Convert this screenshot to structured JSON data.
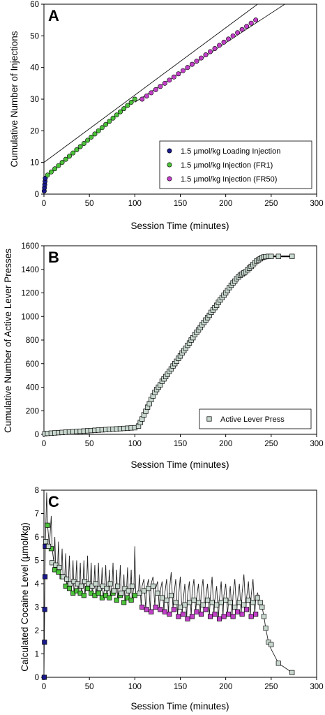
{
  "chart_data": [
    {
      "panel_label": "A",
      "type": "scatter",
      "xlabel": "Session Time (minutes)",
      "ylabel": "Cumulative Number of Injections",
      "xlim": [
        0,
        300
      ],
      "ylim": [
        0,
        60
      ],
      "xticks": [
        0,
        50,
        100,
        150,
        200,
        250,
        300
      ],
      "yticks": [
        0,
        10,
        20,
        30,
        40,
        50,
        60
      ],
      "legend_position": "bottom-right",
      "series": [
        {
          "name": "1.5 µmol/kg Loading Injection",
          "color": "#1a1a8c",
          "marker": "circle",
          "x": [
            0.3,
            0.6,
            0.9,
            1.2,
            1.5
          ],
          "y": [
            1,
            2,
            3,
            4,
            5
          ]
        },
        {
          "name": "1.5 µmol/kg Injection (FR1)",
          "color": "#4cc23a",
          "marker": "circle",
          "x": [
            4,
            8,
            12,
            16,
            20,
            24,
            28,
            32,
            36,
            40,
            44,
            48,
            52,
            56,
            60,
            64,
            68,
            72,
            76,
            80,
            84,
            88,
            92,
            96,
            100
          ],
          "y": [
            6,
            7,
            8,
            9,
            10,
            11,
            12,
            13,
            14,
            15,
            16,
            17,
            18,
            19,
            20,
            21,
            22,
            23,
            24,
            25,
            26,
            27,
            28,
            29,
            30
          ]
        },
        {
          "name": "1.5 µmol/kg Injection (FR50)",
          "color": "#c23fc8",
          "marker": "circle",
          "x": [
            108,
            113,
            118,
            123,
            128,
            133,
            138,
            143,
            148,
            153,
            158,
            163,
            168,
            173,
            178,
            183,
            188,
            193,
            198,
            203,
            208,
            213,
            218,
            223,
            228,
            233
          ],
          "y": [
            30,
            31,
            32,
            33,
            34,
            35,
            36,
            37,
            38,
            39,
            40,
            41,
            42,
            43,
            44,
            45,
            46,
            47,
            48,
            49,
            50,
            51,
            52,
            53,
            54,
            55
          ]
        }
      ],
      "reference_lines": [
        {
          "x": [
            0,
            235
          ],
          "y": [
            10,
            60
          ]
        },
        {
          "x": [
            100,
            265
          ],
          "y": [
            29,
            60
          ]
        }
      ]
    },
    {
      "panel_label": "B",
      "type": "scatter",
      "xlabel": "Session Time (minutes)",
      "ylabel": "Cumulative Number of Active Lever Presses",
      "xlim": [
        0,
        300
      ],
      "ylim": [
        0,
        1600
      ],
      "xticks": [
        0,
        50,
        100,
        150,
        200,
        250,
        300
      ],
      "yticks": [
        0,
        200,
        400,
        600,
        800,
        1000,
        1200,
        1400,
        1600
      ],
      "legend_position": "bottom-right",
      "series": [
        {
          "name": "Active Lever Press",
          "color": "#c8d8cf",
          "marker": "square",
          "x": [
            1,
            4,
            8,
            12,
            16,
            20,
            24,
            28,
            32,
            36,
            40,
            44,
            48,
            52,
            56,
            60,
            64,
            68,
            72,
            76,
            80,
            84,
            88,
            92,
            96,
            100,
            104,
            106,
            108,
            110,
            112,
            114,
            116,
            118,
            120,
            122,
            124,
            126,
            128,
            130,
            132,
            134,
            136,
            138,
            140,
            142,
            144,
            146,
            148,
            150,
            152,
            154,
            156,
            158,
            160,
            162,
            164,
            166,
            168,
            170,
            172,
            174,
            176,
            178,
            180,
            182,
            184,
            186,
            188,
            190,
            192,
            194,
            196,
            198,
            200,
            202,
            204,
            206,
            208,
            210,
            212,
            214,
            216,
            218,
            220,
            222,
            224,
            226,
            228,
            230,
            232,
            234,
            236,
            238,
            240,
            242,
            244,
            247,
            250,
            258,
            273
          ],
          "y": [
            5,
            8,
            10,
            12,
            14,
            16,
            18,
            20,
            22,
            24,
            26,
            28,
            30,
            32,
            34,
            36,
            38,
            40,
            42,
            44,
            46,
            48,
            50,
            52,
            54,
            56,
            70,
            100,
            130,
            165,
            195,
            230,
            260,
            295,
            325,
            355,
            380,
            400,
            420,
            450,
            470,
            490,
            510,
            535,
            555,
            580,
            600,
            620,
            645,
            665,
            690,
            710,
            730,
            755,
            775,
            800,
            820,
            845,
            865,
            885,
            905,
            930,
            950,
            970,
            990,
            1010,
            1035,
            1055,
            1075,
            1095,
            1120,
            1140,
            1160,
            1180,
            1200,
            1220,
            1245,
            1265,
            1285,
            1300,
            1320,
            1335,
            1350,
            1360,
            1370,
            1380,
            1395,
            1410,
            1425,
            1440,
            1455,
            1470,
            1480,
            1490,
            1500,
            1505,
            1508,
            1510,
            1510,
            1510,
            1510
          ]
        }
      ]
    },
    {
      "panel_label": "C",
      "type": "line",
      "xlabel": "Session Time (minutes)",
      "ylabel": "Calculated Cocaine Level (µmol/kg)",
      "xlim": [
        0,
        300
      ],
      "ylim": [
        0,
        8
      ],
      "xticks": [
        0,
        50,
        100,
        150,
        200,
        250,
        300
      ],
      "yticks": [
        0,
        1,
        2,
        3,
        4,
        5,
        6,
        7,
        8
      ],
      "series": [
        {
          "name": "1.5 µmol/kg Loading Injection",
          "color": "#1a1a8c",
          "marker": "square",
          "x": [
            0.3,
            0.6,
            0.9,
            1.2,
            1.5
          ],
          "y": [
            0,
            1.5,
            2.9,
            4.3,
            5.6
          ]
        },
        {
          "name": "1.5 µmol/kg Injection (FR1)",
          "color": "#4cc23a",
          "marker": "square",
          "x": [
            4,
            8,
            12,
            16,
            20,
            24,
            28,
            32,
            36,
            40,
            44,
            48,
            52,
            56,
            60,
            64,
            68,
            72,
            76,
            80,
            84,
            88,
            92,
            96,
            100
          ],
          "y": [
            6.5,
            5.5,
            4.6,
            4.5,
            4.3,
            3.9,
            3.8,
            3.6,
            3.7,
            3.6,
            3.5,
            3.8,
            3.6,
            3.5,
            3.6,
            3.4,
            3.5,
            3.4,
            3.6,
            3.3,
            3.5,
            3.2,
            3.4,
            3.3,
            3.5
          ]
        },
        {
          "name": "1.5 µmol/kg Injection (FR50)",
          "color": "#c23fc8",
          "marker": "square",
          "x": [
            108,
            113,
            118,
            123,
            128,
            133,
            138,
            143,
            148,
            153,
            158,
            163,
            168,
            173,
            178,
            183,
            188,
            193,
            198,
            203,
            208,
            213,
            218,
            223,
            228,
            233
          ],
          "y": [
            3.0,
            2.9,
            2.8,
            3.0,
            2.9,
            2.8,
            2.7,
            2.9,
            2.6,
            2.7,
            2.5,
            2.6,
            2.8,
            2.7,
            2.9,
            2.6,
            2.7,
            2.5,
            2.6,
            2.7,
            2.6,
            2.8,
            2.7,
            2.9,
            2.6,
            2.7
          ]
        },
        {
          "name": "Active Lever Press",
          "color": "#c8d8cf",
          "marker": "square",
          "x": [
            2,
            5,
            9,
            13,
            17,
            21,
            25,
            29,
            33,
            37,
            41,
            45,
            49,
            53,
            57,
            61,
            65,
            69,
            73,
            77,
            81,
            85,
            89,
            93,
            97,
            105,
            110,
            115,
            120,
            125,
            130,
            135,
            140,
            145,
            150,
            155,
            160,
            165,
            170,
            175,
            180,
            185,
            190,
            195,
            200,
            205,
            210,
            215,
            220,
            225,
            230,
            235,
            238,
            240,
            242,
            244,
            247,
            250,
            258,
            273
          ],
          "y": [
            5.8,
            5.6,
            4.9,
            4.8,
            4.7,
            4.3,
            4.2,
            4.0,
            4.1,
            4.0,
            3.9,
            4.1,
            4.0,
            3.9,
            4.0,
            3.8,
            3.9,
            3.8,
            4.0,
            3.7,
            3.9,
            3.6,
            3.8,
            3.7,
            3.9,
            3.6,
            3.7,
            3.8,
            3.9,
            3.6,
            3.4,
            3.3,
            3.5,
            3.2,
            3.0,
            3.1,
            3.2,
            3.3,
            3.2,
            3.1,
            3.3,
            3.2,
            3.1,
            3.2,
            3.3,
            3.2,
            3.0,
            3.2,
            3.1,
            3.3,
            3.2,
            3.4,
            3.2,
            3.0,
            2.6,
            2.1,
            1.5,
            1.4,
            0.6,
            0.2
          ]
        }
      ],
      "trace": {
        "color": "#222222",
        "x": [
          0,
          1.5,
          3,
          4,
          6,
          8,
          9,
          11,
          12,
          13,
          15,
          16,
          17,
          19,
          20,
          21,
          23,
          24,
          25,
          27,
          28,
          29,
          31,
          32,
          33,
          35,
          36,
          37,
          39,
          40,
          41,
          43,
          44,
          45,
          47,
          48,
          49,
          51,
          52,
          53,
          55,
          56,
          57,
          59,
          60,
          61,
          63,
          64,
          65,
          67,
          68,
          69,
          71,
          72,
          73,
          75,
          76,
          77,
          79,
          80,
          81,
          83,
          84,
          85,
          87,
          88,
          89,
          91,
          92,
          93,
          95,
          96,
          97,
          99,
          100,
          101,
          104,
          105,
          107,
          108,
          110,
          112,
          113,
          115,
          117,
          118,
          120,
          122,
          123,
          125,
          127,
          128,
          130,
          132,
          133,
          135,
          137,
          138,
          140,
          142,
          143,
          145,
          147,
          148,
          150,
          152,
          153,
          155,
          157,
          158,
          160,
          162,
          163,
          165,
          167,
          168,
          170,
          172,
          173,
          175,
          177,
          178,
          180,
          182,
          183,
          185,
          187,
          188,
          190,
          192,
          193,
          195,
          197,
          198,
          200,
          202,
          203,
          205,
          207,
          208,
          210,
          212,
          213,
          215,
          217,
          218,
          220,
          222,
          223,
          225,
          227,
          228,
          230,
          232,
          233,
          235,
          238,
          240,
          242,
          244,
          247,
          250,
          258,
          273
        ],
        "y": [
          0,
          5.6,
          7.9,
          6.5,
          5.6,
          6.9,
          5.5,
          4.9,
          6.0,
          4.6,
          4.7,
          5.8,
          4.5,
          4.6,
          5.5,
          4.3,
          4.4,
          5.3,
          3.9,
          4.2,
          5.2,
          3.8,
          4.1,
          5.0,
          3.6,
          4.1,
          5.0,
          3.7,
          4.0,
          4.9,
          3.6,
          4.0,
          5.0,
          3.5,
          4.1,
          5.2,
          3.8,
          4.0,
          4.9,
          3.6,
          4.0,
          4.8,
          3.5,
          4.0,
          4.9,
          3.6,
          3.8,
          4.7,
          3.4,
          3.9,
          4.8,
          3.5,
          3.8,
          4.6,
          3.4,
          4.0,
          4.9,
          3.6,
          3.7,
          4.6,
          3.3,
          3.9,
          4.8,
          3.5,
          3.6,
          4.4,
          3.2,
          3.8,
          4.7,
          3.4,
          3.7,
          4.6,
          3.3,
          3.9,
          5.6,
          3.5,
          3.6,
          4.4,
          3.0,
          3.9,
          4.2,
          2.9,
          3.8,
          4.2,
          2.8,
          4.0,
          4.3,
          3.0,
          3.8,
          4.1,
          2.9,
          3.7,
          4.1,
          2.8,
          3.6,
          4.2,
          2.7,
          3.7,
          4.5,
          2.9,
          3.5,
          4.2,
          2.6,
          3.4,
          4.3,
          2.7,
          3.2,
          4.0,
          2.5,
          3.5,
          4.1,
          2.6,
          3.6,
          4.2,
          2.8,
          3.4,
          4.0,
          2.7,
          3.6,
          4.2,
          2.9,
          3.4,
          4.0,
          2.6,
          3.4,
          4.3,
          2.7,
          3.3,
          3.9,
          2.5,
          3.3,
          4.1,
          2.6,
          3.5,
          4.0,
          2.7,
          3.2,
          3.9,
          2.6,
          3.5,
          4.2,
          2.8,
          3.3,
          4.0,
          2.7,
          3.6,
          4.4,
          2.9,
          3.4,
          4.1,
          2.6,
          3.5,
          4.2,
          2.7,
          3.4,
          3.6,
          3.2,
          3.0,
          2.6,
          2.1,
          1.5,
          1.2,
          0.6,
          0.2
        ]
      }
    }
  ]
}
